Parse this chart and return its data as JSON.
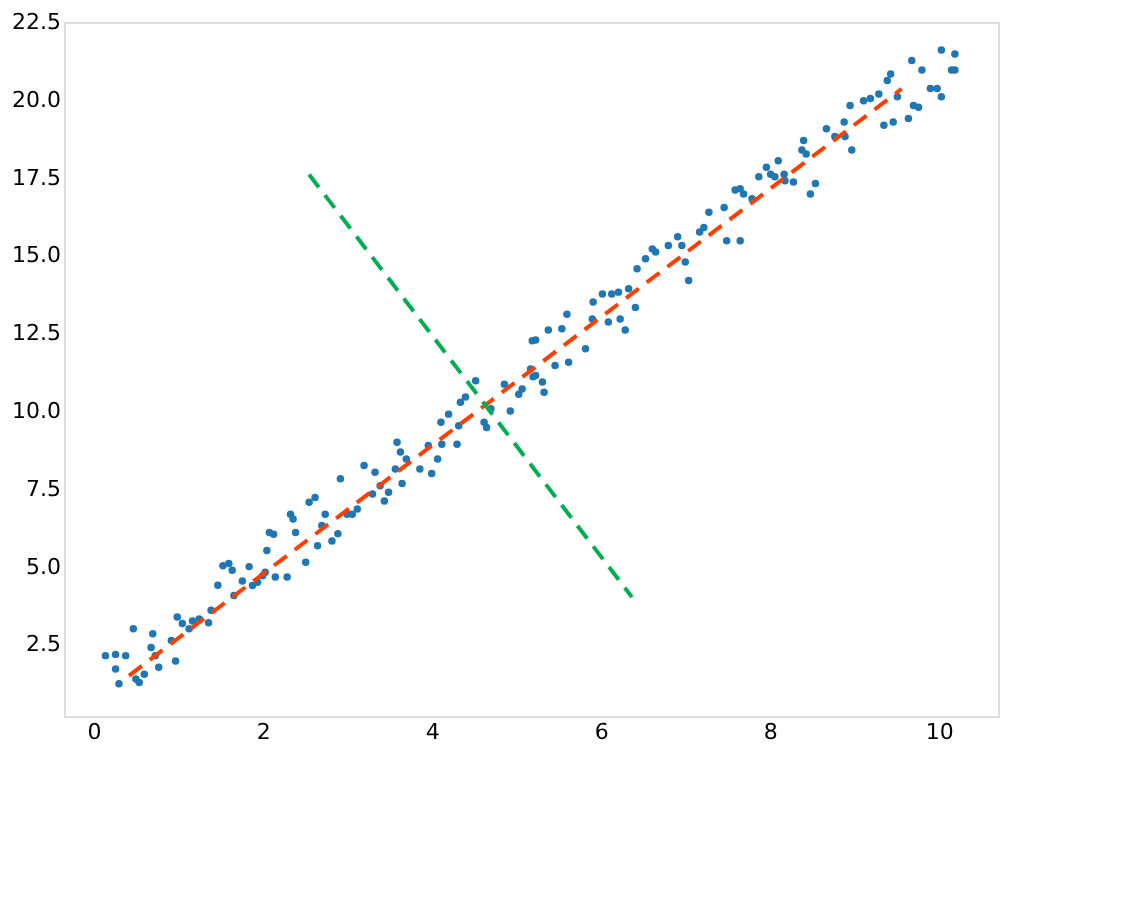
{
  "chart_data": {
    "type": "scatter",
    "xlim": [
      -0.35,
      10.7
    ],
    "ylim": [
      0.2,
      22.5
    ],
    "xticks": [
      0,
      2,
      4,
      6,
      8,
      10
    ],
    "yticks": [
      {
        "value": 2.5,
        "label": "2.5"
      },
      {
        "value": 5,
        "label": "5.0"
      },
      {
        "value": 7.5,
        "label": "7.5"
      },
      {
        "value": 10,
        "label": "10.0"
      },
      {
        "value": 12.5,
        "label": "12.5"
      },
      {
        "value": 15,
        "label": "15.0"
      },
      {
        "value": 17.5,
        "label": "17.5"
      },
      {
        "value": 20,
        "label": "20.0"
      },
      {
        "value": 22.5,
        "label": "22.5"
      }
    ],
    "grid": false,
    "series": [
      {
        "marker": "circle",
        "color": "#1f77b4",
        "x": [
          0.14,
          0.26,
          0.26,
          0.3,
          0.38,
          0.47,
          0.5,
          0.54,
          0.6,
          0.68,
          0.7,
          0.73,
          0.77,
          0.92,
          0.97,
          0.99,
          1.05,
          1.13,
          1.17,
          1.25,
          1.36,
          1.39,
          1.47,
          1.53,
          1.6,
          1.64,
          1.66,
          1.76,
          1.84,
          1.88,
          1.94,
          2.0,
          2.03,
          2.05,
          2.08,
          2.13,
          2.15,
          2.29,
          2.33,
          2.36,
          2.39,
          2.51,
          2.55,
          2.62,
          2.65,
          2.7,
          2.74,
          2.82,
          2.89,
          2.92,
          3.0,
          3.06,
          3.12,
          3.2,
          3.3,
          3.33,
          3.39,
          3.44,
          3.49,
          3.57,
          3.59,
          3.63,
          3.65,
          3.7,
          3.86,
          3.96,
          4.0,
          4.07,
          4.11,
          4.12,
          4.2,
          4.3,
          4.32,
          4.34,
          4.4,
          4.52,
          4.62,
          4.65,
          4.7,
          4.86,
          4.93,
          5.03,
          5.07,
          5.17,
          5.2,
          5.23,
          5.19,
          5.23,
          5.31,
          5.33,
          5.38,
          5.46,
          5.54,
          5.6,
          5.62,
          5.82,
          5.9,
          5.91,
          6.02,
          6.09,
          6.13,
          6.21,
          6.23,
          6.29,
          6.33,
          6.41,
          6.43,
          6.53,
          6.61,
          6.65,
          6.8,
          6.91,
          6.96,
          7.0,
          7.04,
          7.17,
          7.22,
          7.28,
          7.46,
          7.49,
          7.65,
          7.59,
          7.65,
          7.69,
          7.79,
          7.87,
          7.96,
          8.01,
          8.06,
          8.1,
          8.17,
          8.18,
          8.28,
          8.38,
          8.4,
          8.43,
          8.48,
          8.54,
          8.67,
          8.77,
          8.88,
          8.89,
          8.95,
          8.97,
          9.11,
          9.19,
          9.29,
          9.35,
          9.39,
          9.43,
          9.46,
          9.51,
          9.64,
          9.68,
          9.7,
          9.76,
          9.8,
          9.9,
          9.98,
          10.03,
          10.03,
          10.15,
          10.19,
          10.19
        ],
        "values": [
          2.14,
          2.18,
          1.71,
          1.24,
          2.14,
          3.0,
          1.39,
          1.28,
          1.54,
          2.4,
          2.84,
          2.14,
          1.77,
          2.63,
          1.97,
          3.38,
          3.17,
          3.0,
          3.25,
          3.32,
          3.2,
          3.6,
          4.4,
          5.03,
          5.1,
          4.88,
          4.07,
          4.54,
          5.0,
          4.39,
          4.5,
          4.71,
          4.82,
          5.52,
          6.1,
          6.04,
          4.67,
          4.67,
          6.68,
          6.53,
          6.1,
          5.14,
          7.07,
          7.22,
          5.67,
          6.32,
          6.68,
          5.82,
          6.06,
          7.82,
          6.68,
          6.68,
          6.85,
          8.25,
          7.33,
          8.03,
          7.6,
          7.11,
          7.39,
          8.14,
          9.0,
          8.68,
          7.67,
          8.46,
          8.14,
          8.89,
          7.99,
          8.46,
          9.64,
          8.93,
          9.9,
          8.93,
          9.53,
          10.28,
          10.45,
          10.97,
          9.64,
          9.47,
          10.07,
          10.86,
          10.0,
          10.54,
          10.71,
          11.35,
          11.1,
          12.28,
          12.26,
          11.14,
          10.93,
          10.6,
          12.6,
          11.46,
          12.64,
          13.11,
          11.57,
          12.0,
          12.96,
          13.5,
          13.76,
          12.86,
          13.76,
          13.82,
          12.96,
          12.6,
          13.93,
          13.33,
          14.57,
          14.89,
          15.21,
          15.11,
          15.32,
          15.6,
          15.32,
          14.79,
          14.19,
          15.75,
          15.9,
          16.39,
          16.54,
          15.47,
          15.47,
          17.1,
          17.14,
          16.97,
          16.82,
          17.53,
          17.83,
          17.61,
          17.53,
          18.04,
          17.61,
          17.4,
          17.36,
          18.39,
          18.69,
          18.26,
          16.97,
          17.31,
          19.07,
          18.82,
          19.29,
          18.82,
          19.82,
          18.39,
          19.97,
          20.04,
          20.19,
          19.18,
          20.62,
          20.83,
          19.29,
          20.1,
          19.4,
          21.26,
          19.82,
          19.76,
          20.96,
          20.36,
          20.36,
          20.1,
          21.6,
          20.96,
          20.96,
          21.47
        ]
      },
      {
        "type": "line",
        "line_style": "dashed",
        "color": "#ff3d00",
        "x": [
          0.42,
          9.56
        ],
        "values": [
          1.5,
          20.35
        ]
      },
      {
        "type": "line",
        "line_style": "dashed",
        "color": "#00b050",
        "x": [
          2.55,
          6.37
        ],
        "values": [
          17.6,
          4.02
        ]
      }
    ]
  }
}
